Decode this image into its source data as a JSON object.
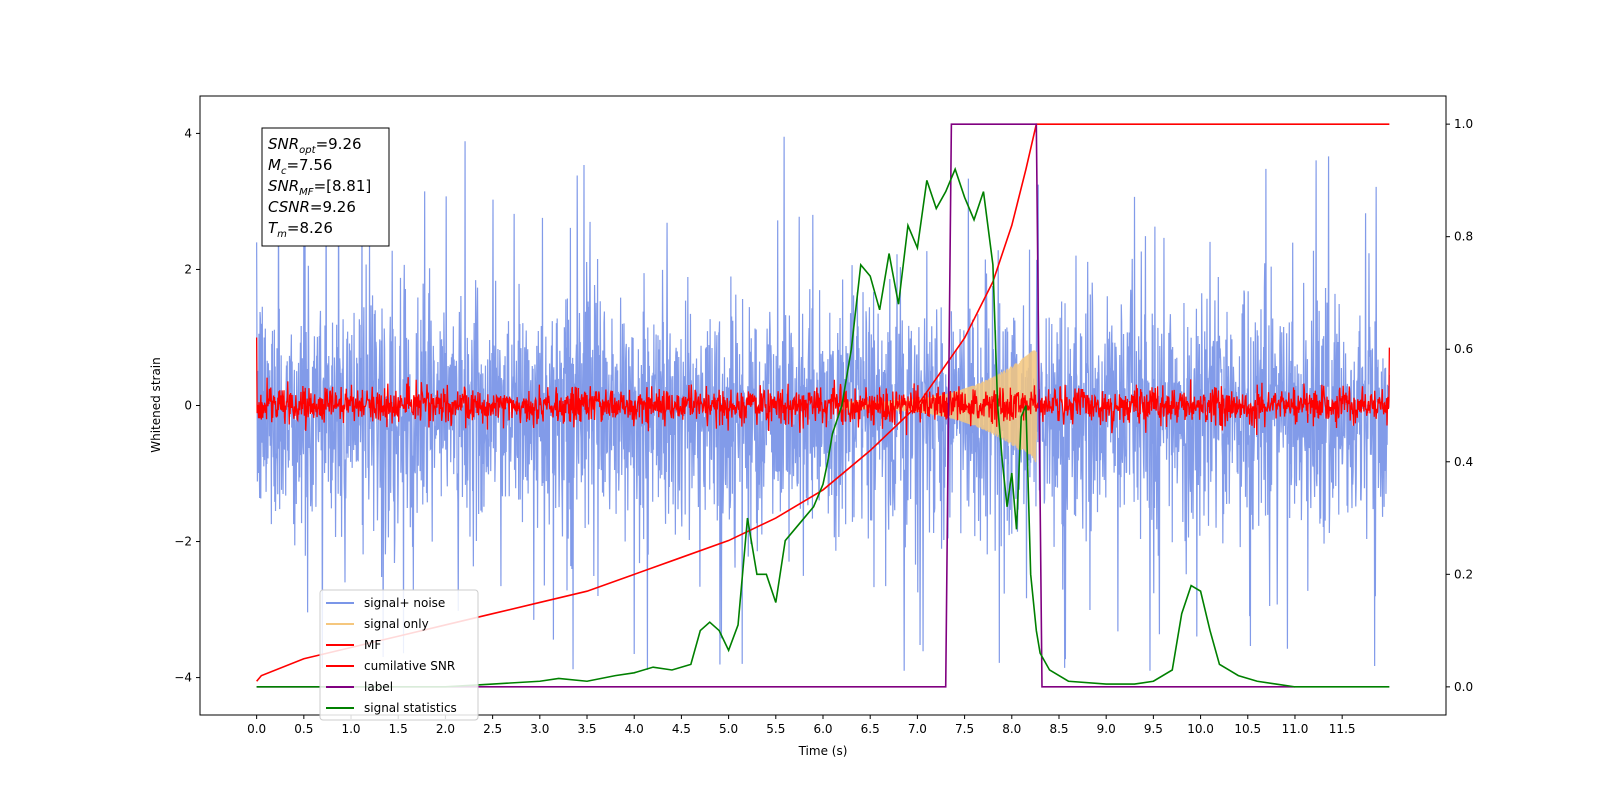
{
  "chart_data": {
    "type": "line",
    "title": "",
    "xlabel": "Time (s)",
    "ylabel": "Whitened strain",
    "y2label": "",
    "xlim": [
      -0.6,
      12.6
    ],
    "ylim": [
      -4.55,
      4.55
    ],
    "y2lim": [
      -0.05,
      1.05
    ],
    "x_ticks": [
      "0.0",
      "0.5",
      "1.0",
      "1.5",
      "2.0",
      "2.5",
      "3.0",
      "3.5",
      "4.0",
      "4.5",
      "5.0",
      "5.5",
      "6.0",
      "6.5",
      "7.0",
      "7.5",
      "8.0",
      "8.5",
      "9.0",
      "9.5",
      "10.0",
      "10.5",
      "11.0",
      "11.5"
    ],
    "y_ticks": [
      "-4",
      "-2",
      "0",
      "2",
      "4"
    ],
    "y2_ticks": [
      "0.0",
      "0.2",
      "0.4",
      "0.6",
      "0.8",
      "1.0"
    ],
    "grid": false,
    "legend_position": "lower-left",
    "info_box": [
      {
        "base": "SNR",
        "sub": "opt",
        "value": "=9.26"
      },
      {
        "base": "M",
        "sub": "c",
        "value": "=7.56"
      },
      {
        "base": "SNR",
        "sub": "MF",
        "value": "=[8.81]"
      },
      {
        "base": "CSNR",
        "sub": "",
        "value": "=9.26"
      },
      {
        "base": "T",
        "sub": "m",
        "value": "=8.26"
      }
    ],
    "series": [
      {
        "name": "signal+ noise",
        "color": "#7b96e8",
        "axis": "left",
        "description_range": [
          0.0,
          12.0
        ],
        "envelope": {
          "upper_typical": 1.8,
          "upper_peak": 4.15,
          "lower_typical": -2.0,
          "lower_peak": -3.9
        }
      },
      {
        "name": "signal only",
        "color": "#f5c77e",
        "axis": "left",
        "chirp": {
          "t_start": 6.2,
          "t_merge": 8.26,
          "amp_start": 0.05,
          "amp_merge": 0.85
        }
      },
      {
        "name": "MF",
        "color": "#ff0000",
        "axis": "left",
        "range": [
          0.0,
          12.0
        ],
        "amplitude": 0.22
      },
      {
        "name": "cumilative SNR",
        "color": "#ff0000",
        "axis": "right",
        "x": [
          0.0,
          0.05,
          0.5,
          1.0,
          1.5,
          2.0,
          2.5,
          3.0,
          3.5,
          4.0,
          4.5,
          5.0,
          5.5,
          6.0,
          6.5,
          7.0,
          7.5,
          7.8,
          8.0,
          8.15,
          8.26,
          12.0
        ],
        "y": [
          0.01,
          0.02,
          0.05,
          0.07,
          0.09,
          0.11,
          0.13,
          0.15,
          0.17,
          0.2,
          0.23,
          0.26,
          0.3,
          0.35,
          0.42,
          0.5,
          0.62,
          0.72,
          0.82,
          0.92,
          1.0,
          1.0
        ]
      },
      {
        "name": "label",
        "color": "#800080",
        "axis": "right",
        "x": [
          0.0,
          7.3,
          7.36,
          8.26,
          8.32,
          11.0
        ],
        "y": [
          0.0,
          0.0,
          1.0,
          1.0,
          0.0,
          0.0
        ]
      },
      {
        "name": "signal statistics",
        "color": "#008000",
        "axis": "right",
        "x": [
          0.0,
          0.5,
          1.0,
          1.5,
          2.0,
          2.5,
          3.0,
          3.2,
          3.5,
          3.8,
          4.0,
          4.2,
          4.4,
          4.6,
          4.7,
          4.8,
          4.9,
          5.0,
          5.1,
          5.2,
          5.3,
          5.4,
          5.5,
          5.6,
          5.7,
          5.8,
          5.9,
          6.0,
          6.05,
          6.1,
          6.2,
          6.3,
          6.4,
          6.5,
          6.6,
          6.7,
          6.8,
          6.9,
          7.0,
          7.1,
          7.2,
          7.3,
          7.4,
          7.5,
          7.6,
          7.7,
          7.8,
          7.85,
          7.9,
          7.95,
          8.0,
          8.05,
          8.1,
          8.15,
          8.2,
          8.26,
          8.3,
          8.4,
          8.6,
          9.0,
          9.3,
          9.5,
          9.7,
          9.8,
          9.9,
          10.0,
          10.1,
          10.2,
          10.3,
          10.4,
          10.6,
          10.8,
          11.0,
          11.5,
          12.0
        ],
        "y": [
          0.0,
          0.0,
          0.0,
          0.0,
          0.0,
          0.005,
          0.01,
          0.015,
          0.01,
          0.02,
          0.025,
          0.035,
          0.03,
          0.04,
          0.1,
          0.115,
          0.1,
          0.065,
          0.11,
          0.3,
          0.2,
          0.2,
          0.15,
          0.26,
          0.28,
          0.3,
          0.32,
          0.36,
          0.4,
          0.45,
          0.5,
          0.6,
          0.75,
          0.73,
          0.67,
          0.77,
          0.68,
          0.82,
          0.78,
          0.9,
          0.85,
          0.88,
          0.92,
          0.87,
          0.83,
          0.88,
          0.75,
          0.5,
          0.4,
          0.32,
          0.38,
          0.28,
          0.48,
          0.5,
          0.2,
          0.1,
          0.06,
          0.03,
          0.01,
          0.005,
          0.005,
          0.01,
          0.03,
          0.13,
          0.18,
          0.17,
          0.1,
          0.04,
          0.03,
          0.02,
          0.01,
          0.005,
          0.0,
          0.0,
          0.0
        ]
      }
    ]
  }
}
